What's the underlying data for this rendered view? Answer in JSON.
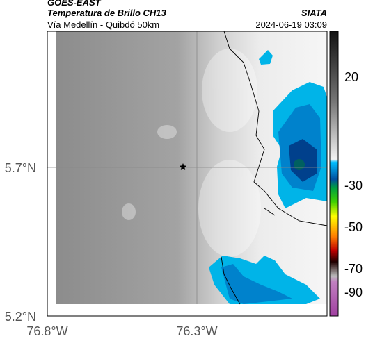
{
  "header": {
    "source": "GOES-EAST",
    "title": "Temperatura de Brillo CH13",
    "subtitle": "Vía Medellín - Quibdó 50km",
    "agency": "SIATA",
    "datetime": "2024-06-19 03:09"
  },
  "axes": {
    "lat_ticks": [
      "5.7°N",
      "5.2°N"
    ],
    "lon_ticks": [
      "76.8°W",
      "76.3°W"
    ]
  },
  "colorbar": {
    "ticks": [
      "20",
      "-30",
      "-50",
      "-70",
      "-90"
    ]
  }
}
